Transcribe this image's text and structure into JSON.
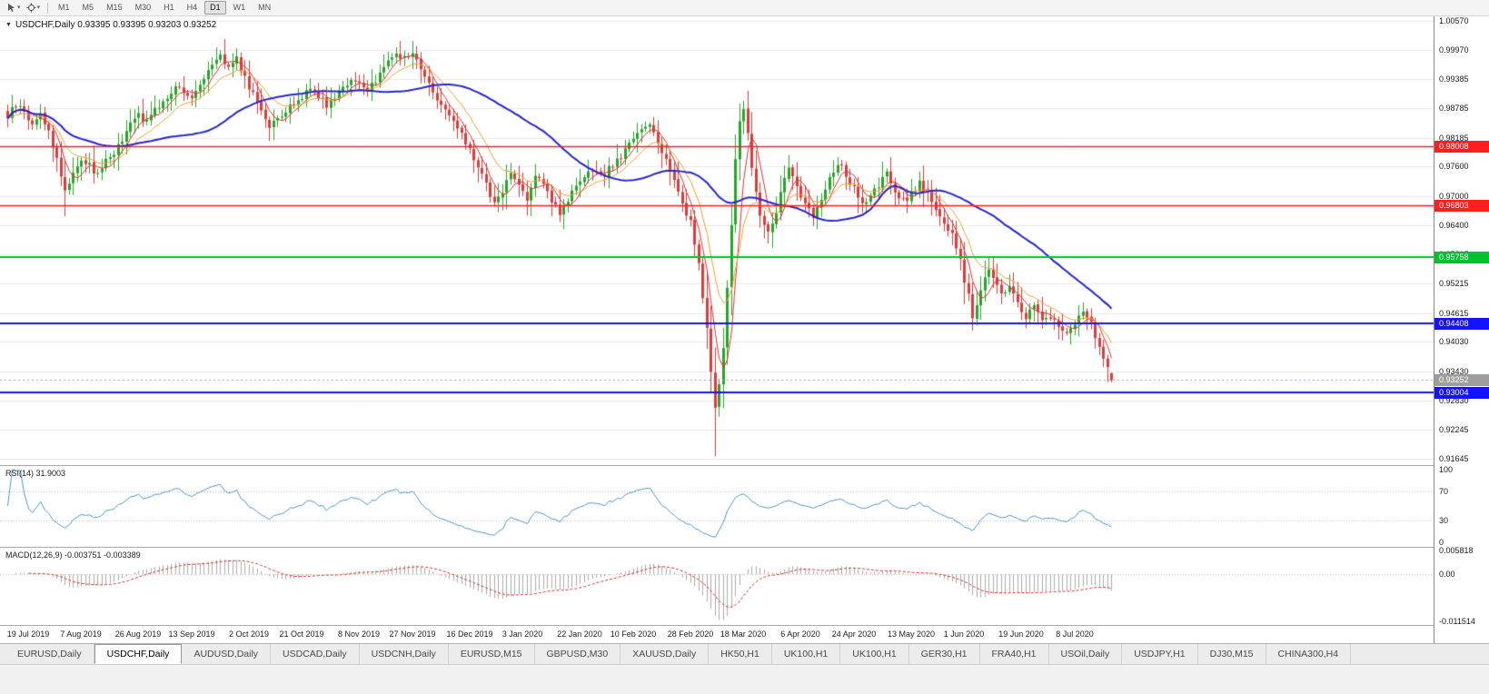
{
  "toolbar": {
    "dropdown_caret": "▾",
    "timeframes": [
      "M1",
      "M5",
      "M15",
      "M30",
      "H1",
      "H4",
      "D1",
      "W1",
      "MN"
    ],
    "active_timeframe": "D1"
  },
  "main_chart": {
    "collapse_marker": "▼",
    "title": "USDCHF,Daily 0.93395 0.93395 0.93203 0.93252"
  },
  "rsi_panel": {
    "label": "RSI(14) 31.9003",
    "period": 14,
    "value": 31.9003,
    "ticks": [
      "100",
      "70",
      "30",
      "0"
    ],
    "level_lines": [
      70,
      30
    ],
    "line_color": "#4f93ce"
  },
  "macd_panel": {
    "label": "MACD(12,26,9) -0.003751 -0.003389",
    "fast": 12,
    "slow": 26,
    "signal": 9,
    "main_value": -0.003751,
    "signal_value": -0.003389,
    "ticks": [
      "0.005818",
      "0.00",
      "-0.011514"
    ],
    "scale_max": 0.005818,
    "scale_min": -0.011514,
    "hist_color": "#ababab",
    "signal_color": "#d23030"
  },
  "chart_data": {
    "type": "candlestick",
    "title": "USDCHF,Daily",
    "symbol": "USDCHF",
    "timeframe": "Daily",
    "last_ohlc": {
      "open": 0.93395,
      "high": 0.93395,
      "low": 0.93203,
      "close": 0.93252
    },
    "current_price": 0.93252,
    "current_tag": {
      "label": "0.93252",
      "color": "#9e9e9e"
    },
    "y_range": {
      "top": 1.0066,
      "bottom": 0.9152
    },
    "y_tick_labels": [
      "1.00570",
      "0.99970",
      "0.99385",
      "0.98785",
      "0.98185",
      "0.97600",
      "0.97000",
      "0.96400",
      "0.95815",
      "0.95215",
      "0.94615",
      "0.94030",
      "0.93430",
      "0.92830",
      "0.92245",
      "0.91645"
    ],
    "x_labels": [
      {
        "text": "19 Jul 2019",
        "day": 5
      },
      {
        "text": "7 Aug 2019",
        "day": 18
      },
      {
        "text": "26 Aug 2019",
        "day": 32
      },
      {
        "text": "13 Sep 2019",
        "day": 45
      },
      {
        "text": "2 Oct 2019",
        "day": 59
      },
      {
        "text": "21 Oct 2019",
        "day": 72
      },
      {
        "text": "8 Nov 2019",
        "day": 86
      },
      {
        "text": "27 Nov 2019",
        "day": 99
      },
      {
        "text": "16 Dec 2019",
        "day": 113
      },
      {
        "text": "3 Jan 2020",
        "day": 126
      },
      {
        "text": "22 Jan 2020",
        "day": 140
      },
      {
        "text": "10 Feb 2020",
        "day": 153
      },
      {
        "text": "28 Feb 2020",
        "day": 167
      },
      {
        "text": "18 Mar 2020",
        "day": 180
      },
      {
        "text": "6 Apr 2020",
        "day": 194
      },
      {
        "text": "24 Apr 2020",
        "day": 207
      },
      {
        "text": "13 May 2020",
        "day": 221
      },
      {
        "text": "1 Jun 2020",
        "day": 234
      },
      {
        "text": "19 Jun 2020",
        "day": 248
      },
      {
        "text": "8 Jul 2020",
        "day": 261
      }
    ],
    "days": 271,
    "close_anchors": [
      [
        0,
        0.9862
      ],
      [
        2,
        0.9885
      ],
      [
        4,
        0.9872
      ],
      [
        6,
        0.9845
      ],
      [
        8,
        0.9868
      ],
      [
        10,
        0.9832
      ],
      [
        12,
        0.9775
      ],
      [
        14,
        0.9712
      ],
      [
        16,
        0.9748
      ],
      [
        18,
        0.9776
      ],
      [
        20,
        0.976
      ],
      [
        22,
        0.9745
      ],
      [
        24,
        0.9772
      ],
      [
        26,
        0.979
      ],
      [
        28,
        0.9812
      ],
      [
        30,
        0.9845
      ],
      [
        32,
        0.9868
      ],
      [
        34,
        0.985
      ],
      [
        36,
        0.9872
      ],
      [
        38,
        0.9895
      ],
      [
        40,
        0.9912
      ],
      [
        42,
        0.9928
      ],
      [
        44,
        0.9898
      ],
      [
        46,
        0.9915
      ],
      [
        48,
        0.9945
      ],
      [
        50,
        0.9975
      ],
      [
        52,
        0.9992
      ],
      [
        54,
        0.9962
      ],
      [
        56,
        0.998
      ],
      [
        58,
        0.9942
      ],
      [
        60,
        0.9905
      ],
      [
        62,
        0.9878
      ],
      [
        64,
        0.9845
      ],
      [
        66,
        0.9852
      ],
      [
        68,
        0.9872
      ],
      [
        70,
        0.9888
      ],
      [
        72,
        0.9905
      ],
      [
        74,
        0.9922
      ],
      [
        76,
        0.9905
      ],
      [
        78,
        0.9888
      ],
      [
        80,
        0.9902
      ],
      [
        82,
        0.9925
      ],
      [
        84,
        0.9938
      ],
      [
        86,
        0.9928
      ],
      [
        88,
        0.9908
      ],
      [
        90,
        0.9938
      ],
      [
        92,
        0.9962
      ],
      [
        94,
        0.9985
      ],
      [
        95,
        0.9996
      ],
      [
        97,
        0.9978
      ],
      [
        99,
        0.9992
      ],
      [
        101,
        0.9962
      ],
      [
        103,
        0.9928
      ],
      [
        105,
        0.9902
      ],
      [
        107,
        0.9875
      ],
      [
        109,
        0.9848
      ],
      [
        111,
        0.9822
      ],
      [
        113,
        0.9795
      ],
      [
        115,
        0.9762
      ],
      [
        117,
        0.9722
      ],
      [
        119,
        0.9682
      ],
      [
        121,
        0.9712
      ],
      [
        123,
        0.9745
      ],
      [
        125,
        0.9722
      ],
      [
        127,
        0.9698
      ],
      [
        129,
        0.9742
      ],
      [
        131,
        0.9718
      ],
      [
        133,
        0.9692
      ],
      [
        135,
        0.9668
      ],
      [
        137,
        0.9692
      ],
      [
        139,
        0.9715
      ],
      [
        141,
        0.9735
      ],
      [
        143,
        0.9752
      ],
      [
        145,
        0.9738
      ],
      [
        147,
        0.9755
      ],
      [
        149,
        0.9772
      ],
      [
        151,
        0.9792
      ],
      [
        153,
        0.9815
      ],
      [
        155,
        0.9838
      ],
      [
        157,
        0.9848
      ],
      [
        159,
        0.9812
      ],
      [
        161,
        0.9775
      ],
      [
        163,
        0.9732
      ],
      [
        165,
        0.9688
      ],
      [
        167,
        0.9645
      ],
      [
        168,
        0.9602
      ],
      [
        169,
        0.9558
      ],
      [
        170,
        0.9495
      ],
      [
        171,
        0.9425
      ],
      [
        172,
        0.9348
      ],
      [
        173,
        0.9272
      ],
      [
        174,
        0.9312
      ],
      [
        175,
        0.9388
      ],
      [
        176,
        0.9512
      ],
      [
        177,
        0.9648
      ],
      [
        178,
        0.9768
      ],
      [
        179,
        0.9858
      ],
      [
        180,
        0.9878
      ],
      [
        181,
        0.9828
      ],
      [
        182,
        0.9758
      ],
      [
        183,
        0.9705
      ],
      [
        184,
        0.9662
      ],
      [
        185,
        0.9638
      ],
      [
        186,
        0.9622
      ],
      [
        187,
        0.9648
      ],
      [
        188,
        0.9672
      ],
      [
        189,
        0.9705
      ],
      [
        190,
        0.9732
      ],
      [
        191,
        0.9758
      ],
      [
        193,
        0.9722
      ],
      [
        195,
        0.9682
      ],
      [
        197,
        0.9662
      ],
      [
        199,
        0.9695
      ],
      [
        201,
        0.9738
      ],
      [
        203,
        0.9768
      ],
      [
        205,
        0.9742
      ],
      [
        207,
        0.9712
      ],
      [
        209,
        0.9678
      ],
      [
        211,
        0.9695
      ],
      [
        213,
        0.9722
      ],
      [
        215,
        0.9742
      ],
      [
        217,
        0.9715
      ],
      [
        219,
        0.9688
      ],
      [
        221,
        0.9705
      ],
      [
        223,
        0.9728
      ],
      [
        225,
        0.9702
      ],
      [
        227,
        0.9675
      ],
      [
        229,
        0.9648
      ],
      [
        231,
        0.9618
      ],
      [
        233,
        0.9565
      ],
      [
        235,
        0.9495
      ],
      [
        236,
        0.9455
      ],
      [
        237,
        0.9475
      ],
      [
        239,
        0.9542
      ],
      [
        240,
        0.9558
      ],
      [
        241,
        0.9532
      ],
      [
        243,
        0.9495
      ],
      [
        245,
        0.9515
      ],
      [
        247,
        0.9482
      ],
      [
        249,
        0.9455
      ],
      [
        251,
        0.9478
      ],
      [
        253,
        0.9448
      ],
      [
        255,
        0.9452
      ],
      [
        257,
        0.9435
      ],
      [
        259,
        0.9415
      ],
      [
        261,
        0.9442
      ],
      [
        263,
        0.9468
      ],
      [
        265,
        0.9438
      ],
      [
        266,
        0.9415
      ],
      [
        267,
        0.9398
      ],
      [
        268,
        0.9375
      ],
      [
        269,
        0.9348
      ],
      [
        270,
        0.9325
      ]
    ],
    "wick_overrides": {
      "14": {
        "low": 0.9659
      },
      "95": {
        "high": 1.0003
      },
      "173": {
        "low": 0.917
      },
      "180": {
        "high": 0.9894
      },
      "236": {
        "low": 0.9426
      }
    },
    "horizontal_levels": [
      {
        "price": 0.98008,
        "label": "0.98008",
        "color": "#ff1f1f",
        "width": 1.5
      },
      {
        "price": 0.96803,
        "label": "0.96803",
        "color": "#ff1f1f",
        "width": 1.5
      },
      {
        "price": 0.95758,
        "label": "0.95758",
        "color": "#00c22a",
        "width": 2
      },
      {
        "price": 0.94408,
        "label": "0.94408",
        "color": "#1313ff",
        "width": 2
      },
      {
        "price": 0.93004,
        "label": "0.93004",
        "color": "#1313ff",
        "width": 2
      }
    ],
    "up_color": "#28a428",
    "down_color": "#de3b3b",
    "grid_color": "#e9e9e9",
    "moving_averages": [
      {
        "period": 5,
        "method": "sma",
        "color": "#e23030",
        "width": 1
      },
      {
        "period": 12,
        "method": "ema",
        "color": "#eda233",
        "width": 1
      },
      {
        "period": 40,
        "method": "sma",
        "color": "#2626cd",
        "width": 2
      }
    ]
  },
  "tabs": {
    "items": [
      "EURUSD,Daily",
      "USDCHF,Daily",
      "AUDUSD,Daily",
      "USDCAD,Daily",
      "USDCNH,Daily",
      "EURUSD,M15",
      "GBPUSD,M30",
      "XAUUSD,Daily",
      "HK50,H1",
      "UK100,H1",
      "UK100,H1",
      "GER30,H1",
      "FRA40,H1",
      "USOil,Daily",
      "USDJPY,H1",
      "DJ30,M15",
      "CHINA300,H4"
    ],
    "active_index": 1
  }
}
